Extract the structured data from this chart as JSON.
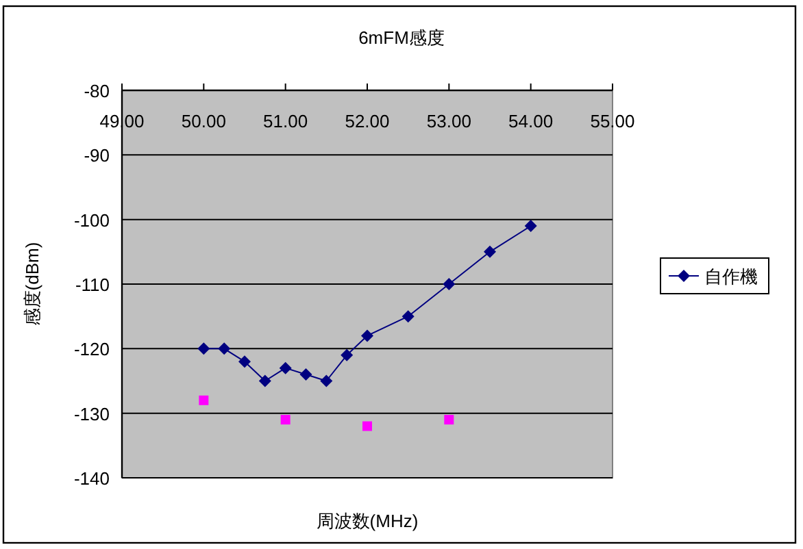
{
  "chart_data": {
    "type": "line",
    "title": "6mFM感度",
    "xlabel": "周波数(MHz)",
    "ylabel": "感度(dBm)",
    "xlim": [
      49,
      55
    ],
    "xticks": [
      {
        "value": 49,
        "label": "49.00"
      },
      {
        "value": 50,
        "label": "50.00"
      },
      {
        "value": 51,
        "label": "51.00"
      },
      {
        "value": 52,
        "label": "52.00"
      },
      {
        "value": 53,
        "label": "53.00"
      },
      {
        "value": 54,
        "label": "54.00"
      },
      {
        "value": 55,
        "label": "55.00"
      }
    ],
    "ylim": [
      -140,
      -80
    ],
    "yticks": [
      -140,
      -130,
      -120,
      -110,
      -100,
      -90,
      -80
    ],
    "grid": "y",
    "legend": "right",
    "series": [
      {
        "name": "自作機",
        "color": "#000080",
        "marker": "diamond",
        "x": [
          50,
          50.25,
          50.5,
          50.75,
          51,
          51.25,
          51.5,
          51.75,
          52,
          52.5,
          53,
          53.5,
          54
        ],
        "values": [
          -120,
          -120,
          -122,
          -125,
          -123,
          -124,
          -125,
          -121,
          -118,
          -115,
          -110,
          -105,
          -101
        ]
      },
      {
        "color": "#ff00ff",
        "type": "scatter",
        "marker": "square",
        "x": [
          50,
          51,
          52,
          53
        ],
        "values": [
          -128,
          -131,
          -132,
          -131
        ]
      }
    ]
  }
}
